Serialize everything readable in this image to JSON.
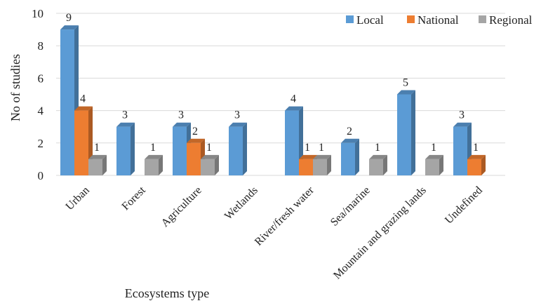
{
  "chart_data": {
    "type": "bar",
    "title": "",
    "xlabel": "Ecosystems type",
    "ylabel": "No of studies",
    "ylim": [
      0,
      10
    ],
    "yticks": [
      0,
      2,
      4,
      6,
      8,
      10
    ],
    "grid": true,
    "legend_position": "top-right",
    "categories": [
      "Urban",
      "Forest",
      "Agriculture",
      "Wetlands",
      "River/fresh water",
      "Sea/marine",
      "Mountain and grazing lands",
      "Undefined"
    ],
    "series": [
      {
        "name": "Local",
        "color": "#5b9bd5",
        "values": [
          9,
          3,
          3,
          3,
          4,
          2,
          5,
          3
        ]
      },
      {
        "name": "National",
        "color": "#ed7d31",
        "values": [
          4,
          null,
          2,
          null,
          1,
          null,
          null,
          1
        ]
      },
      {
        "name": "Regional",
        "color": "#a5a5a5",
        "values": [
          1,
          1,
          1,
          null,
          1,
          1,
          1,
          null
        ]
      }
    ]
  }
}
